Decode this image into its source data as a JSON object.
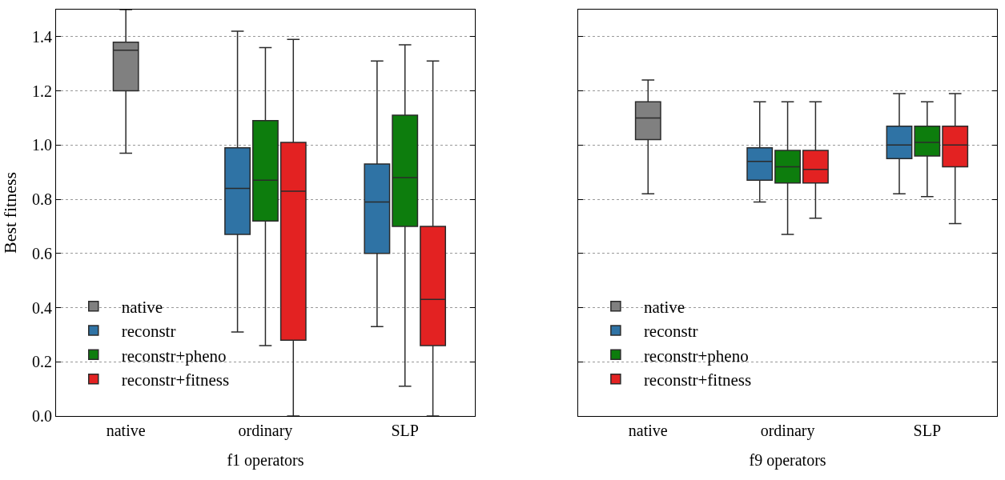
{
  "chart_data": [
    {
      "type": "box",
      "categories": [
        "native",
        "ordinary",
        "SLP"
      ],
      "xlabel": "f1 operators",
      "ylabel": "Best fitness",
      "ylim": [
        0,
        1.5
      ],
      "yticks": [
        {
          "value": 0,
          "label": "0.0"
        },
        {
          "value": 0.2,
          "label": "0.2"
        },
        {
          "value": 0.4,
          "label": "0.4"
        },
        {
          "value": 0.6,
          "label": "0.6"
        },
        {
          "value": 0.8,
          "label": "0.8"
        },
        {
          "value": 1,
          "label": "1.0"
        },
        {
          "value": 1.2,
          "label": "1.2"
        },
        {
          "value": 1.4,
          "label": "1.4"
        }
      ],
      "grid": "y",
      "legend": "bottom left",
      "series": [
        {
          "name": "native",
          "color": "#808080",
          "boxes": [
            {
              "low": 0.97,
              "q1": 1.2,
              "median": 1.35,
              "q3": 1.38,
              "high": 1.5
            },
            null,
            null
          ]
        },
        {
          "name": "reconstr",
          "color": "#2f73a5",
          "boxes": [
            null,
            {
              "low": 0.31,
              "q1": 0.67,
              "median": 0.84,
              "q3": 0.99,
              "high": 1.42
            },
            {
              "low": 0.33,
              "q1": 0.6,
              "median": 0.79,
              "q3": 0.93,
              "high": 1.31
            }
          ]
        },
        {
          "name": "reconstr+pheno",
          "color": "#0d7d0d",
          "boxes": [
            null,
            {
              "low": 0.26,
              "q1": 0.72,
              "median": 0.87,
              "q3": 1.09,
              "high": 1.36
            },
            {
              "low": 0.11,
              "q1": 0.7,
              "median": 0.88,
              "q3": 1.11,
              "high": 1.37
            }
          ]
        },
        {
          "name": "reconstr+fitness",
          "color": "#e32222",
          "boxes": [
            null,
            {
              "low": 0,
              "q1": 0.28,
              "median": 0.83,
              "q3": 1.01,
              "high": 1.39
            },
            {
              "low": 0,
              "q1": 0.26,
              "median": 0.43,
              "q3": 0.7,
              "high": 1.31
            }
          ]
        }
      ]
    },
    {
      "type": "box",
      "categories": [
        "native",
        "ordinary",
        "SLP"
      ],
      "xlabel": "f9 operators",
      "ylim": [
        0,
        1.5
      ],
      "yticks": [
        {
          "value": 0,
          "label": null
        },
        {
          "value": 0.2,
          "label": null
        },
        {
          "value": 0.4,
          "label": null
        },
        {
          "value": 0.6,
          "label": null
        },
        {
          "value": 0.8,
          "label": null
        },
        {
          "value": 1,
          "label": null
        },
        {
          "value": 1.2,
          "label": null
        },
        {
          "value": 1.4,
          "label": null
        }
      ],
      "tick_labels": "x",
      "grid": "y",
      "legend": "bottom left",
      "series": [
        {
          "name": "native",
          "color": "#808080",
          "boxes": [
            {
              "low": 0.82,
              "q1": 1.02,
              "median": 1.1,
              "q3": 1.16,
              "high": 1.24
            },
            null,
            null
          ]
        },
        {
          "name": "reconstr",
          "color": "#2f73a5",
          "boxes": [
            null,
            {
              "low": 0.79,
              "q1": 0.87,
              "median": 0.94,
              "q3": 0.99,
              "high": 1.16
            },
            {
              "low": 0.82,
              "q1": 0.95,
              "median": 1.0,
              "q3": 1.07,
              "high": 1.19
            }
          ]
        },
        {
          "name": "reconstr+pheno",
          "color": "#0d7d0d",
          "boxes": [
            null,
            {
              "low": 0.67,
              "q1": 0.86,
              "median": 0.92,
              "q3": 0.98,
              "high": 1.16
            },
            {
              "low": 0.81,
              "q1": 0.96,
              "median": 1.01,
              "q3": 1.07,
              "high": 1.16
            }
          ]
        },
        {
          "name": "reconstr+fitness",
          "color": "#e32222",
          "boxes": [
            null,
            {
              "low": 0.73,
              "q1": 0.86,
              "median": 0.91,
              "q3": 0.98,
              "high": 1.16
            },
            {
              "low": 0.71,
              "q1": 0.92,
              "median": 1.0,
              "q3": 1.07,
              "high": 1.19
            }
          ]
        }
      ]
    }
  ]
}
